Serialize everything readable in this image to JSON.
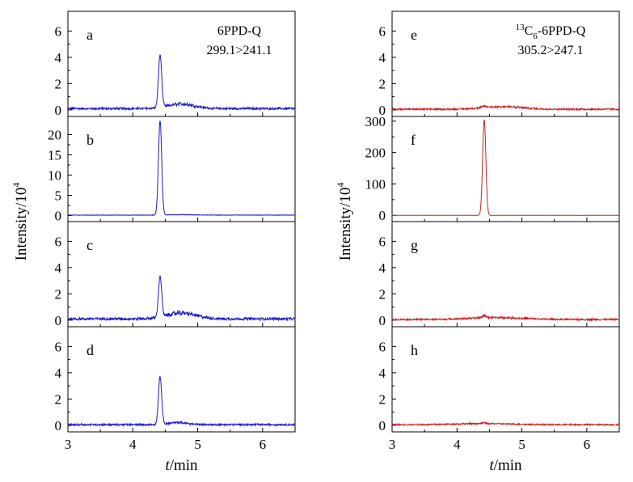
{
  "chart_data": {
    "type": "line",
    "x_axis": {
      "xlabel_italic": "t",
      "xlabel_rest": "/min",
      "xlim": [
        3,
        6.5
      ],
      "ticks": [
        "3",
        "4",
        "5",
        "6"
      ]
    },
    "y_label": {
      "base": "Intensity/10",
      "exp": "4"
    },
    "columns": [
      {
        "id": "left",
        "color": "#1a1acc",
        "compound": {
          "name": "6PPD-Q",
          "transition": "299.1>241.1"
        },
        "panels": [
          {
            "label": "a",
            "ylim": [
              -0.5,
              7.5
            ],
            "yticks": [
              "0",
              "2",
              "4",
              "6"
            ],
            "peak_rt": 4.42,
            "peak_height": 4.0,
            "peak_width": 0.025,
            "baseline": 0.1,
            "noise": 0.08,
            "hump_height": 0.35,
            "hump_center": 4.75,
            "hump_width": 0.2
          },
          {
            "label": "b",
            "ylim": [
              -1.5,
              24.5
            ],
            "yticks": [
              "0",
              "5",
              "10",
              "15",
              "20"
            ],
            "peak_rt": 4.42,
            "peak_height": 23.3,
            "peak_width": 0.025,
            "baseline": 0.1,
            "noise": 0.05,
            "hump_height": 0.1,
            "hump_center": 4.75,
            "hump_width": 0.2
          },
          {
            "label": "c",
            "ylim": [
              -0.5,
              7.5
            ],
            "yticks": [
              "0",
              "2",
              "4",
              "6"
            ],
            "peak_rt": 4.42,
            "peak_height": 3.1,
            "peak_width": 0.025,
            "baseline": 0.1,
            "noise": 0.1,
            "hump_height": 0.45,
            "hump_center": 4.75,
            "hump_width": 0.22
          },
          {
            "label": "d",
            "ylim": [
              -0.5,
              7.5
            ],
            "yticks": [
              "0",
              "2",
              "4",
              "6"
            ],
            "peak_rt": 4.42,
            "peak_height": 3.6,
            "peak_width": 0.025,
            "baseline": 0.05,
            "noise": 0.07,
            "hump_height": 0.15,
            "hump_center": 4.7,
            "hump_width": 0.15
          }
        ]
      },
      {
        "id": "right",
        "color": "#cc2020",
        "compound": {
          "sup": "13",
          "c": "C",
          "sub": "6",
          "rest": "-6PPD-Q",
          "transition": "305.2>247.1"
        },
        "panels": [
          {
            "label": "e",
            "ylim": [
              -0.5,
              7.5
            ],
            "yticks": [
              "0",
              "2",
              "4",
              "6"
            ],
            "peak_rt": 4.42,
            "peak_height": 0.1,
            "peak_width": 0.03,
            "baseline": 0.05,
            "noise": 0.06,
            "hump_height": 0.2,
            "hump_center": 4.7,
            "hump_width": 0.3
          },
          {
            "label": "f",
            "ylim": [
              -20,
              315
            ],
            "yticks": [
              "0",
              "100",
              "200",
              "300"
            ],
            "peak_rt": 4.42,
            "peak_height": 305,
            "peak_width": 0.025,
            "baseline": 0.0,
            "noise": 0.05,
            "hump_height": 0.0,
            "hump_center": 4.7,
            "hump_width": 0.3
          },
          {
            "label": "g",
            "ylim": [
              -0.5,
              7.5
            ],
            "yticks": [
              "0",
              "2",
              "4",
              "6"
            ],
            "peak_rt": 4.42,
            "peak_height": 0.15,
            "peak_width": 0.03,
            "baseline": 0.05,
            "noise": 0.06,
            "hump_height": 0.15,
            "hump_center": 4.6,
            "hump_width": 0.4
          },
          {
            "label": "h",
            "ylim": [
              -0.5,
              7.5
            ],
            "yticks": [
              "0",
              "2",
              "4",
              "6"
            ],
            "peak_rt": 4.42,
            "peak_height": 0.05,
            "peak_width": 0.03,
            "baseline": 0.05,
            "noise": 0.05,
            "hump_height": 0.08,
            "hump_center": 4.4,
            "hump_width": 0.4
          }
        ]
      }
    ]
  }
}
